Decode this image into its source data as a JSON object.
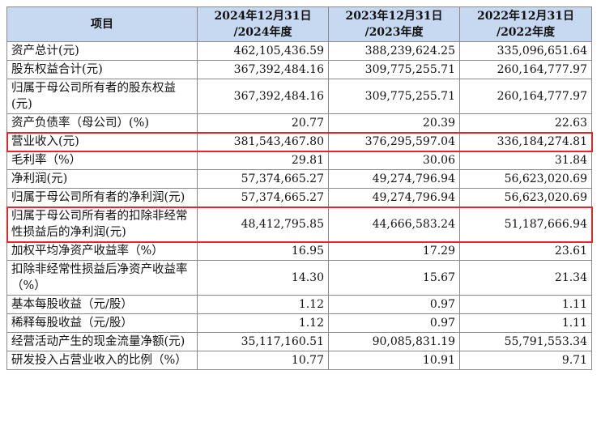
{
  "table": {
    "header": [
      "项目",
      "2024年12月31日\n/2024年度",
      "2023年12月31日\n/2023年度",
      "2022年12月31日\n/2022年度"
    ],
    "rows": [
      {
        "cells": [
          "资产总计(元)",
          "462,105,436.59",
          "388,239,624.25",
          "335,096,651.64"
        ]
      },
      {
        "cells": [
          "股东权益合计(元)",
          "367,392,484.16",
          "309,775,255.71",
          "260,164,777.97"
        ]
      },
      {
        "cells": [
          "归属于母公司所有者的股东权益(元)",
          "367,392,484.16",
          "309,775,255.71",
          "260,164,777.97"
        ]
      },
      {
        "cells": [
          "资产负债率（母公司）(%)",
          "20.77",
          "20.39",
          "22.63"
        ]
      },
      {
        "cells": [
          "营业收入(元)",
          "381,543,467.80",
          "376,295,597.04",
          "336,184,274.81"
        ],
        "highlight": true
      },
      {
        "cells": [
          "毛利率（%）",
          "29.81",
          "30.06",
          "31.84"
        ]
      },
      {
        "cells": [
          "净利润(元)",
          "57,374,665.27",
          "49,274,796.94",
          "56,623,020.69"
        ]
      },
      {
        "cells": [
          "归属于母公司所有者的净利润(元)",
          "57,374,665.27",
          "49,274,796.94",
          "56,623,020.69"
        ]
      },
      {
        "cells": [
          "归属于母公司所有者的扣除非经常性损益后的净利润(元)",
          "48,412,795.85",
          "44,666,583.24",
          "51,187,666.94"
        ],
        "highlight": true
      },
      {
        "cells": [
          "加权平均净资产收益率（%）",
          "16.95",
          "17.29",
          "23.61"
        ]
      },
      {
        "cells": [
          "扣除非经常性损益后净资产收益率（%）",
          "14.30",
          "15.67",
          "21.34"
        ]
      },
      {
        "cells": [
          "基本每股收益（元/股）",
          "1.12",
          "0.97",
          "1.11"
        ]
      },
      {
        "cells": [
          "稀释每股收益（元/股）",
          "1.12",
          "0.97",
          "1.11"
        ]
      },
      {
        "cells": [
          "经营活动产生的现金流量净额(元)",
          "35,117,160.51",
          "90,085,831.19",
          "55,791,553.34"
        ]
      },
      {
        "cells": [
          "研发投入占营业收入的比例（%）",
          "10.77",
          "10.91",
          "9.71"
        ]
      }
    ]
  }
}
